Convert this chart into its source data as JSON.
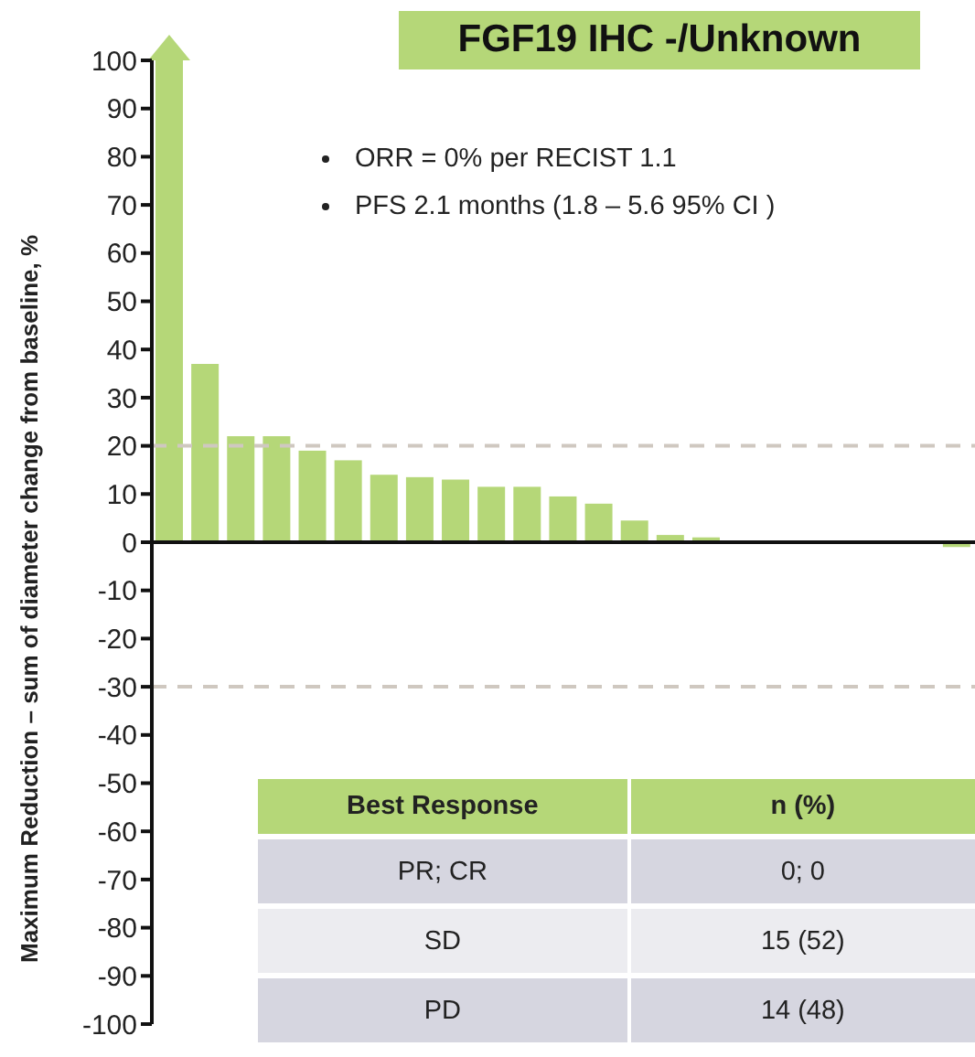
{
  "chart_data": {
    "type": "bar",
    "title": "FGF19 IHC -/Unknown",
    "ylabel": "Maximum Reduction – sum of diameter change from baseline, %",
    "categories": [
      null,
      null,
      null,
      null,
      null,
      null,
      null,
      null,
      null,
      null,
      null,
      null,
      null,
      null,
      null,
      null,
      null,
      null,
      null,
      null,
      null,
      null,
      null
    ],
    "values": [
      100,
      37,
      22,
      22,
      19,
      17,
      14,
      13.5,
      13,
      11.5,
      11.5,
      9.5,
      8,
      4.5,
      1.5,
      1,
      0,
      0,
      0,
      0,
      0,
      0,
      -1
    ],
    "color": "#b5d778",
    "ylim": [
      -100,
      100
    ],
    "yticks": [
      -100,
      -90,
      -80,
      -70,
      -60,
      -50,
      -40,
      -30,
      -20,
      -10,
      0,
      10,
      20,
      30,
      40,
      50,
      60,
      70,
      80,
      90,
      100
    ],
    "ref_lines": [
      {
        "axis": "y",
        "value": 20,
        "color": "#cfc8c0",
        "line_style": "dashed"
      },
      {
        "axis": "y",
        "value": -30,
        "color": "#cfc8c0",
        "line_style": "dashed"
      }
    ],
    "annotations": [
      "ORR = 0% per RECIST 1.1",
      "PFS  2.1 months (1.8 – 5.6 95% CI )",
      "Best Response",
      "n (%)",
      "PR; CR",
      "0; 0",
      "SD",
      "15 (52)",
      "PD",
      "14 (48)"
    ],
    "grid": false,
    "legend": false
  }
}
